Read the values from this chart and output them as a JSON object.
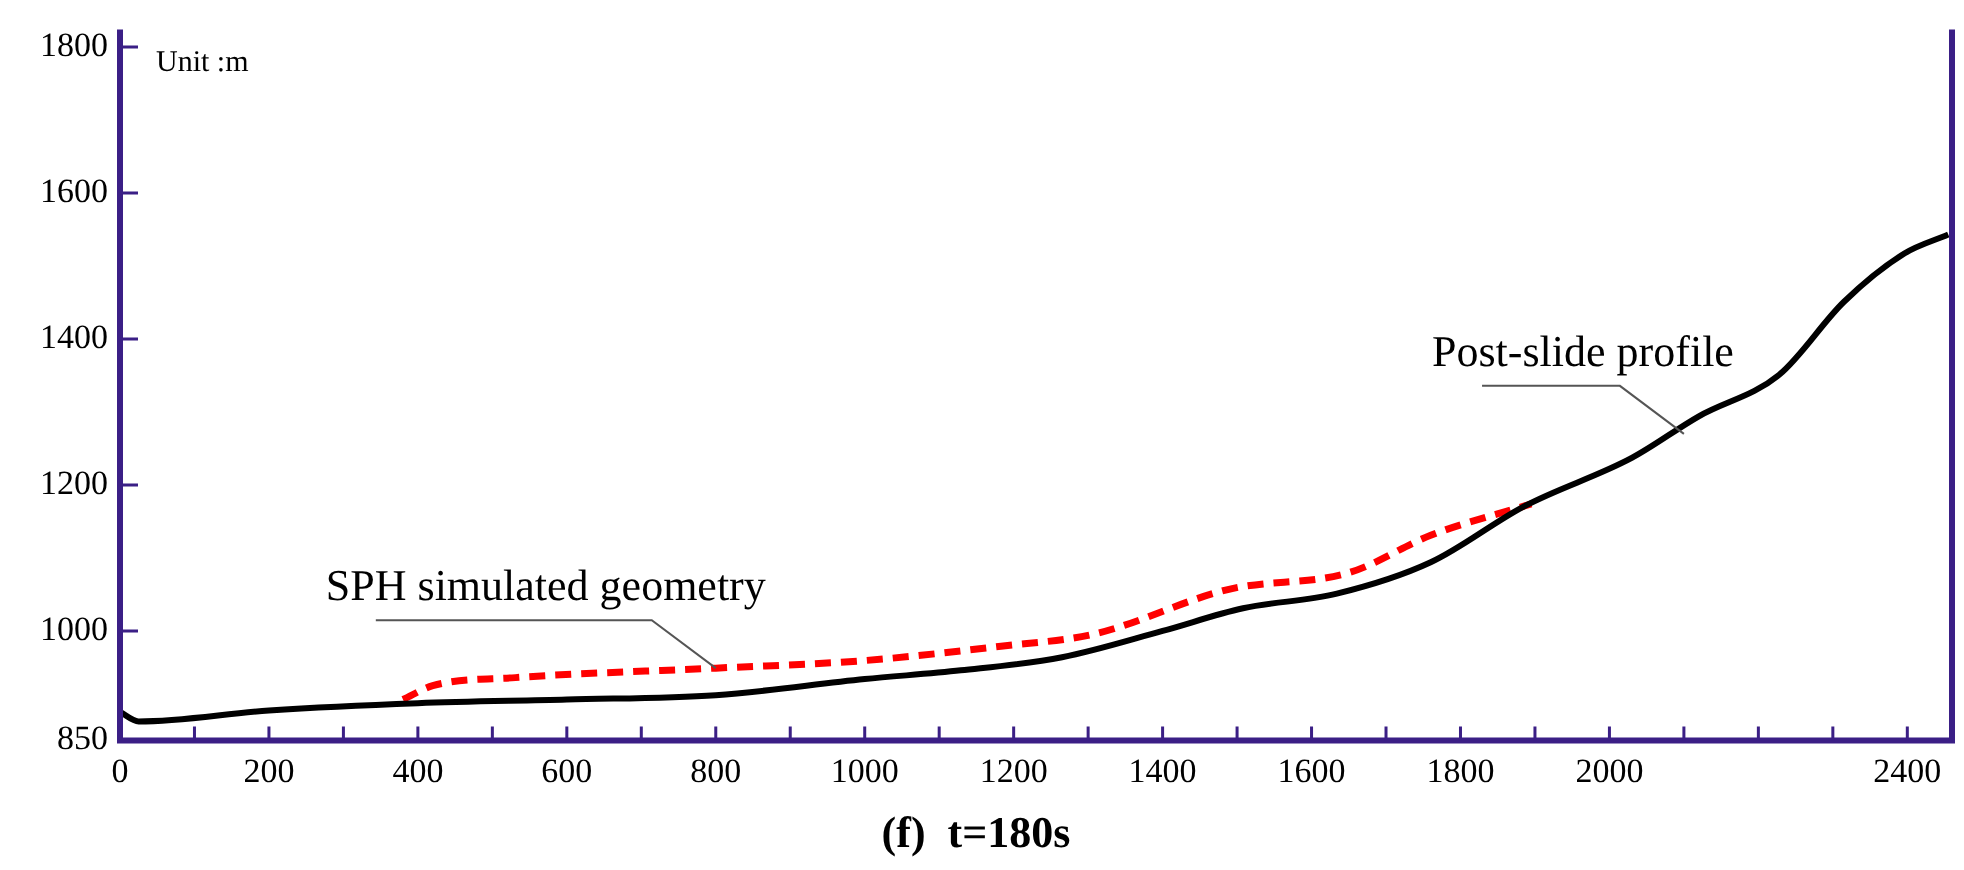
{
  "chart_data": {
    "type": "line",
    "title": "(f)  t=180s",
    "xlim": [
      0,
      2460
    ],
    "ylim": [
      850,
      1820
    ],
    "xticks": [
      0,
      {
        "value": 100,
        "label": null
      },
      200,
      {
        "value": 300,
        "label": null
      },
      400,
      {
        "value": 500,
        "label": null
      },
      600,
      {
        "value": 700,
        "label": null
      },
      800,
      {
        "value": 900,
        "label": null
      },
      1000,
      {
        "value": 1100,
        "label": null
      },
      1200,
      {
        "value": 1300,
        "label": null
      },
      1400,
      {
        "value": 1500,
        "label": null
      },
      1600,
      {
        "value": 1700,
        "label": null
      },
      1800,
      {
        "value": 1900,
        "label": null
      },
      2000,
      {
        "value": 2100,
        "label": null
      },
      {
        "value": 2200,
        "label": null
      },
      {
        "value": 2300,
        "label": null
      },
      2400
    ],
    "yticks": [
      850,
      1000,
      1200,
      1400,
      1600,
      1800
    ],
    "grid": false,
    "legend": false,
    "marker": "none",
    "series": [
      {
        "color": "#000000",
        "line_style": "solid",
        "x": [
          0,
          25,
          200,
          400,
          600,
          800,
          1000,
          1129,
          1265,
          1400,
          1508,
          1634,
          1760,
          1886,
          2030,
          2120,
          2228,
          2315,
          2396,
          2455
        ],
        "values": [
          889,
          876,
          891,
          901,
          906,
          912,
          934,
          946,
          964,
          1000,
          1031,
          1051,
          1094,
          1171,
          1237,
          1294,
          1351,
          1451,
          1517,
          1543
        ]
      },
      {
        "color": "#ff0000",
        "line_style": "dashed",
        "x": [
          380,
          420,
          531,
          800,
          995,
          1183,
          1309,
          1489,
          1651,
          1760,
          1895
        ],
        "values": [
          906,
          925,
          936,
          949,
          959,
          979,
          996,
          1057,
          1080,
          1131,
          1174
        ]
      }
    ],
    "annotations": [
      "Unit :m",
      {
        "text": "SPH simulated geometry",
        "x": 800,
        "y": 949
      },
      {
        "text": "Post-slide profile",
        "x": 2100,
        "y": 1270
      }
    ]
  }
}
